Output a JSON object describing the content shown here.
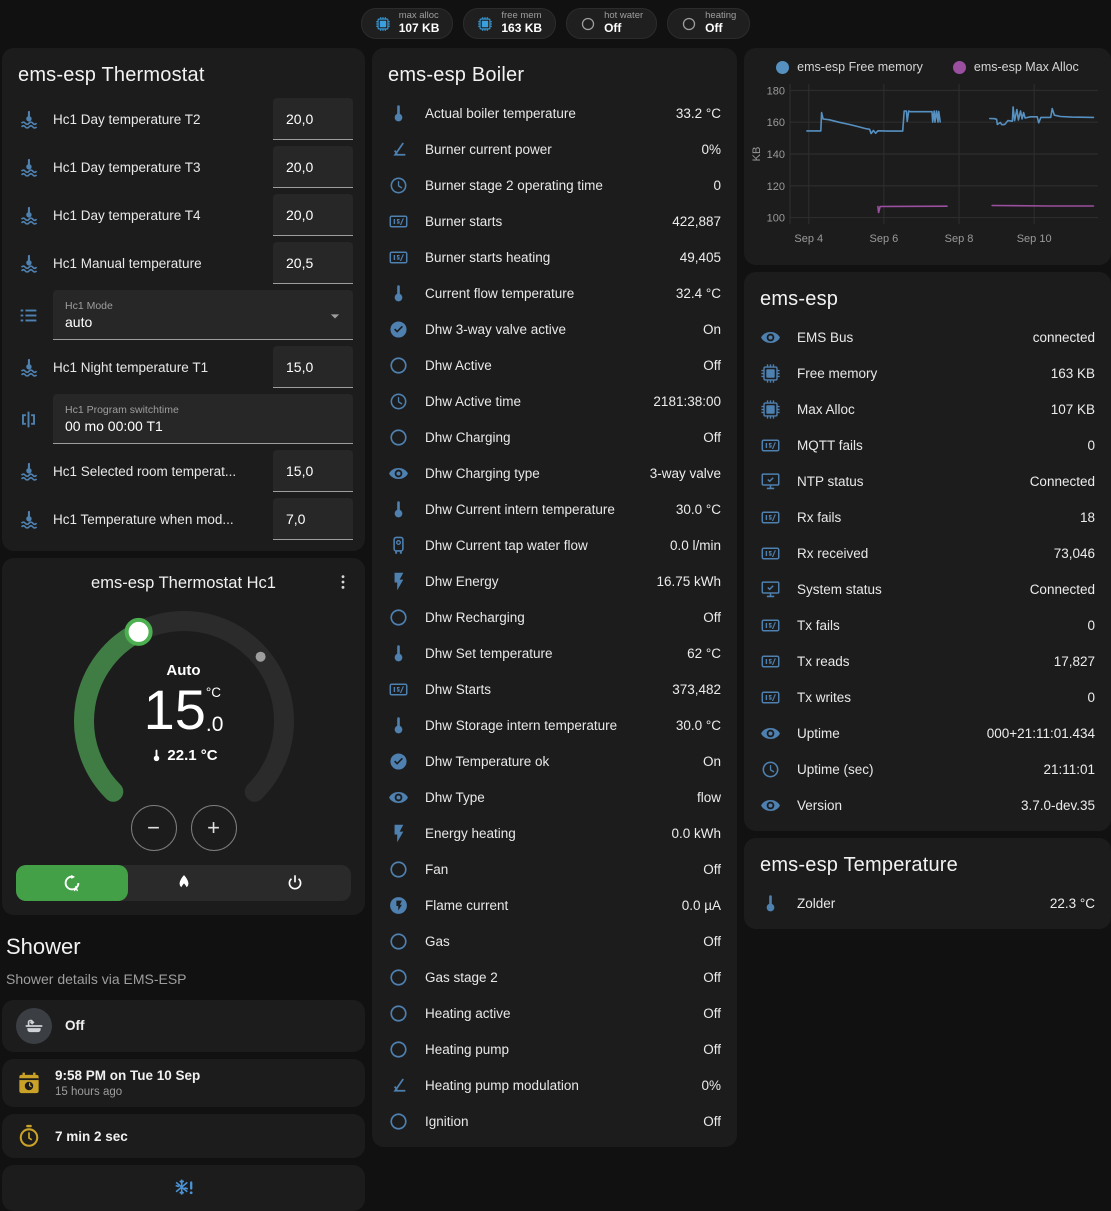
{
  "colors": {
    "icon_blue": "#4e80b0",
    "icon_yellow": "#c9a227",
    "accent_green": "#43a047",
    "chip_icon_blue": "#3b9fdd",
    "chip_icon_gray": "#9e9e9e",
    "chart_blue": "#5590c0",
    "chart_purple": "#9b4f9f",
    "snowflake_blue": "#4b93d6"
  },
  "chips": [
    {
      "label": "max alloc",
      "value": "107 KB",
      "icon": "chip",
      "color": "#3b9fdd"
    },
    {
      "label": "free mem",
      "value": "163 KB",
      "icon": "chip",
      "color": "#3b9fdd"
    },
    {
      "label": "hot water",
      "value": "Off",
      "icon": "circle-outline",
      "color": "#9e9e9e"
    },
    {
      "label": "heating",
      "value": "Off",
      "icon": "circle-outline",
      "color": "#9e9e9e"
    }
  ],
  "thermostat_card": {
    "title": "ems-esp Thermostat",
    "rows": [
      {
        "type": "number",
        "icon": "coolant",
        "label": "Hc1 Day temperature T2",
        "value": "20,0"
      },
      {
        "type": "number",
        "icon": "coolant",
        "label": "Hc1 Day temperature T3",
        "value": "20,0"
      },
      {
        "type": "number",
        "icon": "coolant",
        "label": "Hc1 Day temperature T4",
        "value": "20,0"
      },
      {
        "type": "number",
        "icon": "coolant",
        "label": "Hc1 Manual temperature",
        "value": "20,5"
      },
      {
        "type": "select",
        "icon": "list",
        "label": "Hc1 Mode",
        "value": "auto"
      },
      {
        "type": "number",
        "icon": "coolant",
        "label": "Hc1 Night temperature T1",
        "value": "15,0"
      },
      {
        "type": "text",
        "icon": "pipe-valve",
        "label": "Hc1 Program switchtime",
        "value": "00 mo 00:00 T1"
      },
      {
        "type": "number",
        "icon": "coolant",
        "label": "Hc1 Selected room temperat...",
        "value": "15,0"
      },
      {
        "type": "number",
        "icon": "coolant",
        "label": "Hc1 Temperature when mod...",
        "value": "7,0"
      }
    ]
  },
  "dial": {
    "title": "ems-esp Thermostat Hc1",
    "mode_label": "Auto",
    "target_whole": "15",
    "target_unit": "°C",
    "target_decimal": ".0",
    "current_temperature": "22.1 °C",
    "minus_label": "−",
    "plus_label": "+",
    "modes": [
      {
        "icon": "thermostat-auto",
        "active": true
      },
      {
        "icon": "fire",
        "active": false
      },
      {
        "icon": "power",
        "active": false
      }
    ]
  },
  "shower": {
    "title": "Shower",
    "subtitle": "Shower details via EMS-ESP",
    "items": [
      {
        "icon": "bathtub",
        "style": "circle",
        "value": "Off",
        "secondary": ""
      },
      {
        "icon": "calendar-clock",
        "style": "yellow",
        "value": "9:58 PM on Tue 10 Sep",
        "secondary": "15 hours ago"
      },
      {
        "icon": "timer",
        "style": "yellow",
        "value": "7 min 2 sec",
        "secondary": ""
      }
    ],
    "freeze_icon": "snowflake-alert"
  },
  "boiler_card": {
    "title": "ems-esp Boiler",
    "rows": [
      {
        "icon": "thermometer",
        "label": "Actual boiler temperature",
        "value": "33.2 °C"
      },
      {
        "icon": "angle",
        "label": "Burner current power",
        "value": "0%"
      },
      {
        "icon": "clock",
        "label": "Burner stage 2 operating time",
        "value": "0"
      },
      {
        "icon": "counter",
        "label": "Burner starts",
        "value": "422,887"
      },
      {
        "icon": "counter",
        "label": "Burner starts heating",
        "value": "49,405"
      },
      {
        "icon": "thermometer",
        "label": "Current flow temperature",
        "value": "32.4 °C"
      },
      {
        "icon": "check-circle",
        "label": "Dhw 3-way valve active",
        "value": "On"
      },
      {
        "icon": "circle-outline",
        "label": "Dhw Active",
        "value": "Off"
      },
      {
        "icon": "clock",
        "label": "Dhw Active time",
        "value": "2181:38:00"
      },
      {
        "icon": "circle-outline",
        "label": "Dhw Charging",
        "value": "Off"
      },
      {
        "icon": "eye",
        "label": "Dhw Charging type",
        "value": "3-way valve"
      },
      {
        "icon": "thermometer",
        "label": "Dhw Current intern temperature",
        "value": "30.0 °C"
      },
      {
        "icon": "water-boiler",
        "label": "Dhw Current tap water flow",
        "value": "0.0 l/min"
      },
      {
        "icon": "flash",
        "label": "Dhw Energy",
        "value": "16.75 kWh"
      },
      {
        "icon": "circle-outline",
        "label": "Dhw Recharging",
        "value": "Off"
      },
      {
        "icon": "thermometer",
        "label": "Dhw Set temperature",
        "value": "62 °C"
      },
      {
        "icon": "counter",
        "label": "Dhw Starts",
        "value": "373,482"
      },
      {
        "icon": "thermometer",
        "label": "Dhw Storage intern temperature",
        "value": "30.0 °C"
      },
      {
        "icon": "check-circle",
        "label": "Dhw Temperature ok",
        "value": "On"
      },
      {
        "icon": "eye",
        "label": "Dhw Type",
        "value": "flow"
      },
      {
        "icon": "flash",
        "label": "Energy heating",
        "value": "0.0 kWh"
      },
      {
        "icon": "circle-outline",
        "label": "Fan",
        "value": "Off"
      },
      {
        "icon": "flash-circle",
        "label": "Flame current",
        "value": "0.0 µA"
      },
      {
        "icon": "circle-outline",
        "label": "Gas",
        "value": "Off"
      },
      {
        "icon": "circle-outline",
        "label": "Gas stage 2",
        "value": "Off"
      },
      {
        "icon": "circle-outline",
        "label": "Heating active",
        "value": "Off"
      },
      {
        "icon": "circle-outline",
        "label": "Heating pump",
        "value": "Off"
      },
      {
        "icon": "angle",
        "label": "Heating pump modulation",
        "value": "0%"
      },
      {
        "icon": "circle-outline",
        "label": "Ignition",
        "value": "Off"
      }
    ]
  },
  "emsesp_card": {
    "title": "ems-esp",
    "rows": [
      {
        "icon": "eye",
        "label": "EMS Bus",
        "value": "connected"
      },
      {
        "icon": "chip",
        "label": "Free memory",
        "value": "163 KB"
      },
      {
        "icon": "chip",
        "label": "Max Alloc",
        "value": "107 KB"
      },
      {
        "icon": "counter",
        "label": "MQTT fails",
        "value": "0"
      },
      {
        "icon": "monitor-check",
        "label": "NTP status",
        "value": "Connected"
      },
      {
        "icon": "counter",
        "label": "Rx fails",
        "value": "18"
      },
      {
        "icon": "counter",
        "label": "Rx received",
        "value": "73,046"
      },
      {
        "icon": "monitor-check",
        "label": "System status",
        "value": "Connected"
      },
      {
        "icon": "counter",
        "label": "Tx fails",
        "value": "0"
      },
      {
        "icon": "counter",
        "label": "Tx reads",
        "value": "17,827"
      },
      {
        "icon": "counter",
        "label": "Tx writes",
        "value": "0"
      },
      {
        "icon": "eye",
        "label": "Uptime",
        "value": "000+21:11:01.434"
      },
      {
        "icon": "clock",
        "label": "Uptime (sec)",
        "value": "21:11:01"
      },
      {
        "icon": "eye",
        "label": "Version",
        "value": "3.7.0-dev.35"
      }
    ]
  },
  "temperature_card": {
    "title": "ems-esp Temperature",
    "rows": [
      {
        "icon": "thermometer",
        "label": "Zolder",
        "value": "22.3 °C"
      }
    ]
  },
  "chart_data": {
    "type": "line",
    "title": "",
    "ylabel": "KB",
    "xlabel": "",
    "grid": true,
    "legend_position": "top",
    "ylim": [
      96,
      184
    ],
    "xlim": [
      3.5,
      11.7
    ],
    "yticks": [
      100,
      120,
      140,
      160,
      180
    ],
    "xticks": [
      {
        "x": 4,
        "label": "Sep 4"
      },
      {
        "x": 6,
        "label": "Sep 6"
      },
      {
        "x": 8,
        "label": "Sep 8"
      },
      {
        "x": 10,
        "label": "Sep 10"
      }
    ],
    "series": [
      {
        "name": "ems-esp Free memory",
        "color": "#5590c0",
        "unit": "KB",
        "segments": [
          [
            [
              3.95,
              154.5
            ],
            [
              4.32,
              154.5
            ],
            [
              4.34,
              166
            ],
            [
              4.38,
              162
            ],
            [
              4.55,
              161.5
            ],
            [
              4.8,
              160
            ],
            [
              5.1,
              158.5
            ],
            [
              5.35,
              157
            ],
            [
              5.5,
              156
            ],
            [
              5.62,
              155.5
            ],
            [
              5.66,
              152.8
            ],
            [
              5.72,
              154.8
            ],
            [
              5.78,
              153
            ],
            [
              5.84,
              154.6
            ],
            [
              6.1,
              154.4
            ],
            [
              6.5,
              154.4
            ],
            [
              6.54,
              167
            ],
            [
              6.6,
              167
            ],
            [
              6.62,
              160.5
            ],
            [
              6.66,
              167
            ],
            [
              6.7,
              166.6
            ],
            [
              7.28,
              166.6
            ],
            [
              7.3,
              160
            ],
            [
              7.34,
              167
            ],
            [
              7.36,
              160
            ],
            [
              7.4,
              167
            ],
            [
              7.44,
              160
            ],
            [
              7.46,
              166.8
            ],
            [
              7.5,
              160.2
            ]
          ],
          [
            [
              8.82,
              162.3
            ],
            [
              8.95,
              162.2
            ],
            [
              9.0,
              161.8
            ],
            [
              9.02,
              158.6
            ],
            [
              9.1,
              159.8
            ],
            [
              9.14,
              158.4
            ],
            [
              9.22,
              158.6
            ],
            [
              9.3,
              161
            ],
            [
              9.42,
              160.6
            ],
            [
              9.44,
              169.6
            ],
            [
              9.48,
              161
            ],
            [
              9.54,
              168
            ],
            [
              9.58,
              161.4
            ],
            [
              9.64,
              167
            ],
            [
              9.68,
              162
            ],
            [
              9.72,
              166
            ],
            [
              9.76,
              162.6
            ],
            [
              9.9,
              163.4
            ],
            [
              10.08,
              163.4
            ],
            [
              10.12,
              159.6
            ],
            [
              10.18,
              163
            ],
            [
              10.44,
              163
            ],
            [
              10.48,
              168.6
            ],
            [
              10.54,
              164.4
            ],
            [
              10.7,
              163.6
            ],
            [
              11.0,
              163.2
            ],
            [
              11.58,
              163
            ]
          ]
        ]
      },
      {
        "name": "ems-esp Max Alloc",
        "color": "#9b4f9f",
        "unit": "KB",
        "segments": [
          [
            [
              5.84,
              107
            ],
            [
              5.86,
              103.2
            ],
            [
              5.9,
              107
            ],
            [
              7.68,
              107.2
            ]
          ],
          [
            [
              8.88,
              107.6
            ],
            [
              10.4,
              107.3
            ],
            [
              11.58,
              107.3
            ]
          ]
        ]
      }
    ]
  }
}
